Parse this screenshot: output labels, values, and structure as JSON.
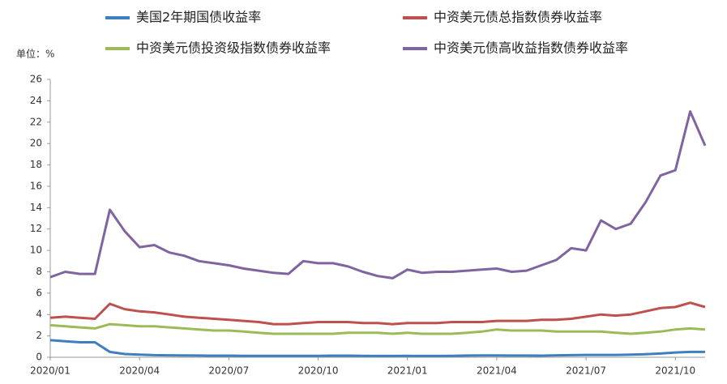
{
  "chart_data": {
    "type": "line",
    "unit_label": "单位：%",
    "categories": [
      "2020/01",
      null,
      null,
      null,
      null,
      null,
      "2020/04",
      null,
      null,
      null,
      null,
      null,
      "2020/07",
      null,
      null,
      null,
      null,
      null,
      "2020/10",
      null,
      null,
      null,
      null,
      null,
      "2021/01",
      null,
      null,
      null,
      null,
      null,
      "2021/04",
      null,
      null,
      null,
      null,
      null,
      "2021/07",
      null,
      null,
      null,
      null,
      null,
      "2021/10",
      null,
      null
    ],
    "series": [
      {
        "name": "美国2年期国债收益率",
        "color": "#3f7fbf",
        "values": [
          1.6,
          1.5,
          1.4,
          1.4,
          0.5,
          0.3,
          0.25,
          0.2,
          0.18,
          0.17,
          0.16,
          0.15,
          0.15,
          0.14,
          0.14,
          0.13,
          0.14,
          0.14,
          0.14,
          0.15,
          0.15,
          0.13,
          0.12,
          0.12,
          0.13,
          0.12,
          0.12,
          0.14,
          0.16,
          0.17,
          0.17,
          0.16,
          0.16,
          0.15,
          0.18,
          0.2,
          0.22,
          0.22,
          0.22,
          0.24,
          0.28,
          0.35,
          0.45,
          0.5,
          0.5
        ]
      },
      {
        "name": "中资美元债总指数债券收益率",
        "color": "#c0504d",
        "values": [
          3.7,
          3.8,
          3.7,
          3.6,
          5.0,
          4.5,
          4.3,
          4.2,
          4.0,
          3.8,
          3.7,
          3.6,
          3.5,
          3.4,
          3.3,
          3.1,
          3.1,
          3.2,
          3.3,
          3.3,
          3.3,
          3.2,
          3.2,
          3.1,
          3.2,
          3.2,
          3.2,
          3.3,
          3.3,
          3.3,
          3.4,
          3.4,
          3.4,
          3.5,
          3.5,
          3.6,
          3.8,
          4.0,
          3.9,
          4.0,
          4.3,
          4.6,
          4.7,
          5.1,
          4.7
        ]
      },
      {
        "name": "中资美元债投资级指数债券收益率",
        "color": "#9bbb59",
        "values": [
          3.0,
          2.9,
          2.8,
          2.7,
          3.1,
          3.0,
          2.9,
          2.9,
          2.8,
          2.7,
          2.6,
          2.5,
          2.5,
          2.4,
          2.3,
          2.2,
          2.2,
          2.2,
          2.2,
          2.2,
          2.3,
          2.3,
          2.3,
          2.2,
          2.3,
          2.2,
          2.2,
          2.2,
          2.3,
          2.4,
          2.6,
          2.5,
          2.5,
          2.5,
          2.4,
          2.4,
          2.4,
          2.4,
          2.3,
          2.2,
          2.3,
          2.4,
          2.6,
          2.7,
          2.6
        ]
      },
      {
        "name": "中资美元债高收益指数债券收益率",
        "color": "#8064a2",
        "values": [
          7.5,
          8.0,
          7.8,
          7.8,
          13.8,
          11.8,
          10.3,
          10.5,
          9.8,
          9.5,
          9.0,
          8.8,
          8.6,
          8.3,
          8.1,
          7.9,
          7.8,
          9.0,
          8.8,
          8.8,
          8.5,
          8.0,
          7.6,
          7.4,
          8.2,
          7.9,
          8.0,
          8.0,
          8.1,
          8.2,
          8.3,
          8.0,
          8.1,
          8.6,
          9.1,
          10.2,
          10.0,
          12.8,
          12.0,
          12.5,
          14.5,
          17.0,
          17.5,
          23.0,
          19.8
        ]
      }
    ],
    "ylim": [
      0,
      26
    ],
    "yticks": [
      0,
      2,
      4,
      6,
      8,
      10,
      12,
      14,
      16,
      18,
      20,
      22,
      24,
      26
    ],
    "grid": false
  }
}
